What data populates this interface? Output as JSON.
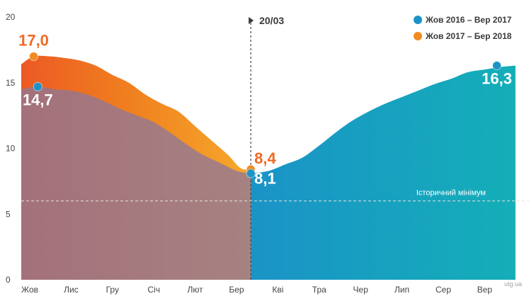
{
  "chart_data": {
    "type": "area",
    "xlabel": "",
    "ylabel": "",
    "ylim": [
      0,
      20
    ],
    "yticks": [
      0,
      5,
      10,
      15,
      20
    ],
    "months": [
      "Жов",
      "Лис",
      "Гру",
      "Січ",
      "Лют",
      "Бер",
      "Кві",
      "Тра",
      "Чер",
      "Лип",
      "Сер",
      "Вер"
    ],
    "series": [
      {
        "name": "Жов 2016 – Вер 2017",
        "color": "#1d93c7",
        "x": [
          0.0,
          0.4,
          0.8,
          1.2,
          1.6,
          2.0,
          2.4,
          2.8,
          3.2,
          3.6,
          4.0,
          4.4,
          4.8,
          5.2,
          5.5,
          5.6,
          6.0,
          6.4,
          6.8,
          7.2,
          7.6,
          8.0,
          8.4,
          8.8,
          9.2,
          9.6,
          10.0,
          10.4,
          10.8,
          11.2,
          11.6,
          11.95
        ],
        "values": [
          14.5,
          14.7,
          14.5,
          14.4,
          14.1,
          13.6,
          13.0,
          12.5,
          12.0,
          11.2,
          10.3,
          9.5,
          8.9,
          8.3,
          8.1,
          8.1,
          8.3,
          8.8,
          9.3,
          10.2,
          11.2,
          12.1,
          12.8,
          13.4,
          13.9,
          14.4,
          14.9,
          15.3,
          15.8,
          16.0,
          16.2,
          16.3
        ]
      },
      {
        "name": "Жов 2017 – Бер 2018",
        "color": "#f28a22",
        "x": [
          0.0,
          0.3,
          0.7,
          1.0,
          1.4,
          1.8,
          2.2,
          2.6,
          3.0,
          3.4,
          3.8,
          4.2,
          4.6,
          5.0,
          5.3,
          5.55
        ],
        "values": [
          16.4,
          17.0,
          17.0,
          16.9,
          16.7,
          16.3,
          15.6,
          15.0,
          14.1,
          13.4,
          12.8,
          11.7,
          10.6,
          9.5,
          8.5,
          8.4
        ]
      }
    ],
    "point_labels": [
      {
        "text": "17,0",
        "series": 1,
        "x": 0.3,
        "y": 17.0
      },
      {
        "text": "14,7",
        "series": 0,
        "x": 0.4,
        "y": 14.7
      },
      {
        "text": "8,4",
        "series": 1,
        "x": 5.55,
        "y": 8.4
      },
      {
        "text": "8,1",
        "series": 0,
        "x": 5.55,
        "y": 8.1
      },
      {
        "text": "16,3",
        "series": 0,
        "x": 11.5,
        "y": 16.3
      }
    ],
    "reference_line": {
      "label": "Історичний мінімум",
      "value": 6.0
    },
    "date_marker": {
      "label": "20/03",
      "x": 5.55
    },
    "legend_position": "top-right",
    "credit": "utg.ua"
  }
}
